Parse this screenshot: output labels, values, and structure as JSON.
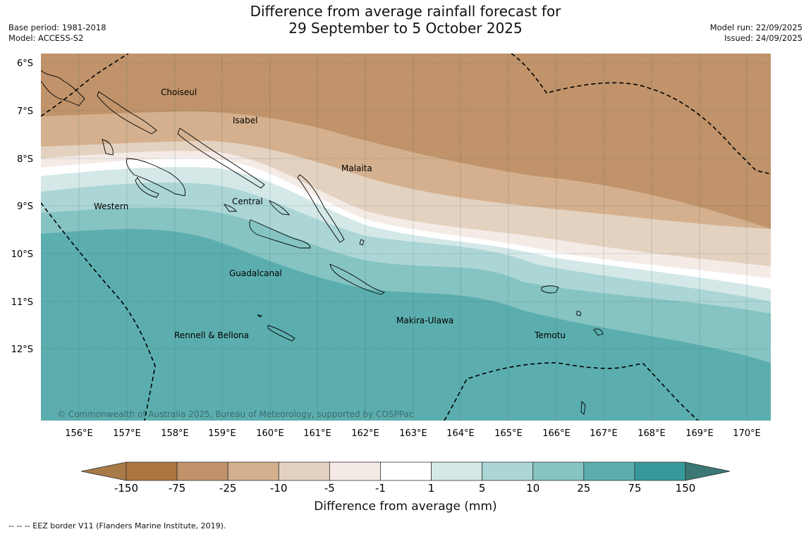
{
  "title": {
    "line1": "Difference from average rainfall forecast for",
    "line2": "29 September to 5 October 2025"
  },
  "meta_left": {
    "base_period": "Base period: 1981-2018",
    "model": "Model: ACCESS-S2"
  },
  "meta_right": {
    "model_run": "Model run: 22/09/2025",
    "issued": "Issued: 24/09/2025"
  },
  "map": {
    "lat_labels": [
      "6°S",
      "7°S",
      "8°S",
      "9°S",
      "10°S",
      "11°S",
      "12°S"
    ],
    "lon_labels": [
      "156°E",
      "157°E",
      "158°E",
      "159°E",
      "160°E",
      "161°E",
      "162°E",
      "163°E",
      "164°E",
      "165°E",
      "166°E",
      "167°E",
      "168°E",
      "169°E",
      "170°E"
    ],
    "provinces": [
      "Choiseul",
      "Isabel",
      "Malaita",
      "Central",
      "Western",
      "Guadalcanal",
      "Makira-Ulawa",
      "Rennell & Bellona",
      "Temotu"
    ],
    "copyright": "© Commonwealth of Australia 2025, Bureau of Meteorology, supported by COSPPac"
  },
  "colorbar": {
    "ticks": [
      "-150",
      "-75",
      "-25",
      "-10",
      "-5",
      "-1",
      "1",
      "5",
      "10",
      "25",
      "75",
      "150"
    ],
    "colors": [
      "#a87a48",
      "#ac7640",
      "#c0936a",
      "#d4b08e",
      "#e4d2c0",
      "#f5ebe6",
      "#ffffff",
      "#d4e8e8",
      "#acd6d6",
      "#85c4c2",
      "#5caeae",
      "#379999",
      "#3a7775"
    ],
    "title": "Difference from average (mm)"
  },
  "footer": "--  --  -- EEZ border V11 (Flanders Marine Institute, 2019)."
}
